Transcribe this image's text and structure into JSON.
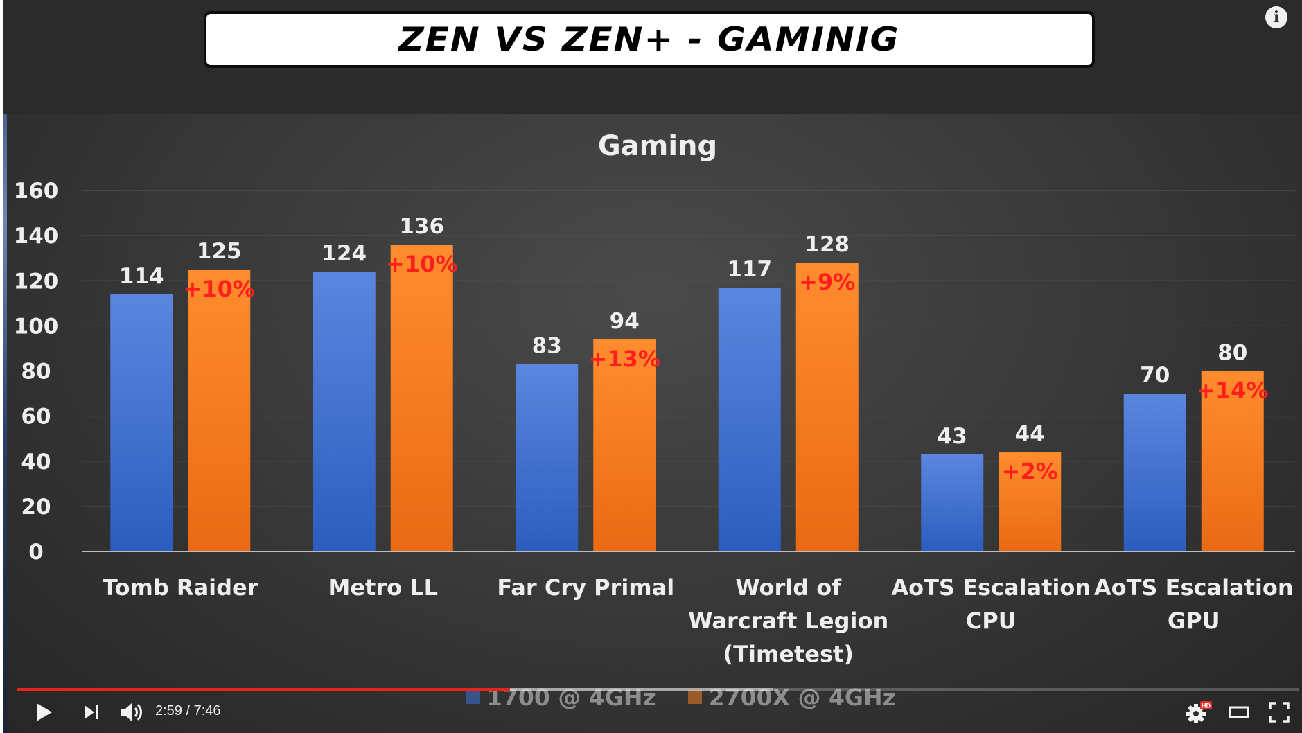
{
  "video": {
    "banner_title": "ZEN VS ZEN+ - GAMINIG",
    "time_current": "2:59",
    "time_total": "7:46",
    "time_display": "2:59 / 7:46",
    "progress_played_fraction": 0.3847,
    "progress_buffered_fraction": 0.59,
    "hd_badge": "HD",
    "icons": {
      "info": "info-icon",
      "play": "play-icon",
      "next": "next-icon",
      "volume": "volume-icon",
      "settings": "gear-icon",
      "theater": "theater-mode-icon",
      "fullscreen": "fullscreen-icon"
    }
  },
  "chart_data": {
    "type": "bar",
    "title": "Gaming",
    "categories": [
      [
        "Tomb Raider"
      ],
      [
        "Metro LL"
      ],
      [
        "Far Cry Primal"
      ],
      [
        "World of",
        "Warcraft Legion",
        "(Timetest)"
      ],
      [
        "AoTS Escalation",
        "CPU"
      ],
      [
        "AoTS Escalation",
        "GPU"
      ]
    ],
    "series": [
      {
        "name": "1700 @ 4GHz",
        "values": [
          114,
          124,
          83,
          117,
          43,
          70
        ],
        "color": "#3f70d0"
      },
      {
        "name": "2700X @ 4GHz",
        "values": [
          125,
          136,
          94,
          128,
          44,
          80
        ],
        "color": "#f07a22"
      }
    ],
    "annotations": [
      "+10%",
      "+10%",
      "+13%",
      "+9%",
      "+2%",
      "+14%"
    ],
    "annotation_color": "#ff1e1e",
    "ylim": [
      0,
      160
    ],
    "yticks": [
      0,
      20,
      40,
      60,
      80,
      100,
      120,
      140,
      160
    ],
    "xlabel": "",
    "ylabel": "",
    "grid": true,
    "legend_position": "bottom"
  }
}
